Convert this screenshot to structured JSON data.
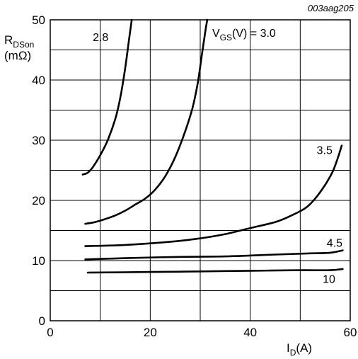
{
  "chart_data": {
    "type": "line",
    "code": "003aag205",
    "ylabel": {
      "main": "R",
      "sub": "DSon",
      "unit": "(mΩ)"
    },
    "xlabel": {
      "main": "I",
      "sub": "D",
      "unit": "(A)"
    },
    "xlim": [
      0,
      60
    ],
    "ylim": [
      0,
      50
    ],
    "x_ticks": [
      0,
      20,
      40,
      60
    ],
    "y_ticks": [
      0,
      10,
      20,
      30,
      40,
      50
    ],
    "x_grid": [
      0,
      10,
      20,
      30,
      40,
      50,
      60
    ],
    "y_grid": [
      0,
      5,
      10,
      15,
      20,
      25,
      30,
      35,
      40,
      45,
      50
    ],
    "legend_title": "V(V) = 3.0",
    "legend": {
      "pre": "V",
      "sub": "GS",
      "post": "(V) = 3.0"
    },
    "series": [
      {
        "name": "2.8",
        "points": [
          [
            6.5,
            24.3
          ],
          [
            7.5,
            24.6
          ],
          [
            8.5,
            25.5
          ],
          [
            10,
            27.5
          ],
          [
            11.5,
            30
          ],
          [
            13,
            33.5
          ],
          [
            14,
            37
          ],
          [
            15,
            42
          ],
          [
            15.8,
            47
          ],
          [
            16.3,
            50
          ]
        ]
      },
      {
        "name": "3.0",
        "points": [
          [
            7,
            16.1
          ],
          [
            9,
            16.4
          ],
          [
            11,
            16.9
          ],
          [
            13,
            17.5
          ],
          [
            15,
            18.3
          ],
          [
            17,
            19.3
          ],
          [
            19,
            20.3
          ],
          [
            21,
            21.8
          ],
          [
            23,
            24
          ],
          [
            25,
            27.2
          ],
          [
            27,
            31.5
          ],
          [
            28.5,
            35.5
          ],
          [
            29.5,
            39.5
          ],
          [
            30.3,
            44
          ],
          [
            31,
            48
          ],
          [
            31.4,
            50
          ]
        ]
      },
      {
        "name": "3.5",
        "points": [
          [
            7,
            12.4
          ],
          [
            15,
            12.6
          ],
          [
            25,
            13.2
          ],
          [
            30,
            13.7
          ],
          [
            35,
            14.4
          ],
          [
            40,
            15.4
          ],
          [
            45,
            16.4
          ],
          [
            48,
            17.4
          ],
          [
            51,
            18.7
          ],
          [
            53,
            20.3
          ],
          [
            55,
            22.6
          ],
          [
            56.5,
            24.8
          ],
          [
            57.5,
            27
          ],
          [
            58.3,
            29.1
          ]
        ]
      },
      {
        "name": "4.5",
        "points": [
          [
            7,
            10.2
          ],
          [
            15,
            10.4
          ],
          [
            25,
            10.6
          ],
          [
            35,
            10.7
          ],
          [
            45,
            11
          ],
          [
            52,
            11.2
          ],
          [
            56,
            11.3
          ],
          [
            58.5,
            11.7
          ]
        ]
      },
      {
        "name": "10",
        "points": [
          [
            7.5,
            8
          ],
          [
            20,
            8.1
          ],
          [
            30,
            8.2
          ],
          [
            40,
            8.3
          ],
          [
            50,
            8.4
          ],
          [
            56,
            8.4
          ],
          [
            58.5,
            8.6
          ]
        ]
      }
    ],
    "labels": [
      {
        "text": "2.8",
        "x": 8.5,
        "y": 46.5
      },
      {
        "text": "3.5",
        "x": 53.3,
        "y": 27.7
      },
      {
        "text": "4.5",
        "x": 55.3,
        "y": 12.3
      },
      {
        "text": "10",
        "x": 54.5,
        "y": 6.3
      }
    ]
  }
}
